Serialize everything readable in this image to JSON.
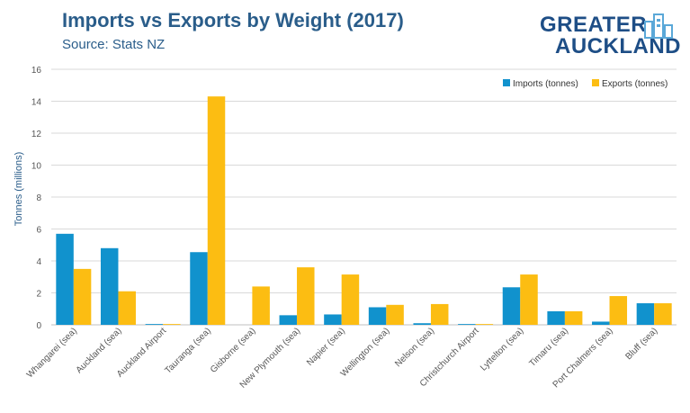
{
  "header": {
    "title": "Imports vs Exports by Weight (2017)",
    "subtitle": "Source: Stats NZ"
  },
  "logo": {
    "line1": "GREATER",
    "line2": "AUCKLAND"
  },
  "colors": {
    "imports": "#1192cd",
    "exports": "#fcbd12",
    "grid": "#d9d9d9",
    "title": "#2a5d8a",
    "logo": "#1e4e86"
  },
  "chart_data": {
    "type": "bar",
    "title": "Imports vs Exports by Weight (2017)",
    "subtitle": "Source: Stats NZ",
    "xlabel": "",
    "ylabel": "Tonnes (millions)",
    "ylim": [
      0,
      16
    ],
    "yticks": [
      0,
      2,
      4,
      6,
      8,
      10,
      12,
      14,
      16
    ],
    "grid": true,
    "legend_position": "top-right",
    "categories": [
      "Whangarei (sea)",
      "Auckland (sea)",
      "Auckland Airport",
      "Tauranga (sea)",
      "Gisborne (sea)",
      "New Plymouth (sea)",
      "Napier (sea)",
      "Wellington (sea)",
      "Nelson (sea)",
      "Christchurch Airport",
      "Lyttelton (sea)",
      "Timaru (sea)",
      "Port Chalmers (sea)",
      "Bluff (sea)"
    ],
    "series": [
      {
        "name": "Imports (tonnes)",
        "color": "#1192cd",
        "values": [
          5.7,
          4.8,
          0.05,
          4.55,
          0.0,
          0.6,
          0.65,
          1.1,
          0.1,
          0.05,
          2.35,
          0.85,
          0.2,
          1.35
        ]
      },
      {
        "name": "Exports (tonnes)",
        "color": "#fcbd12",
        "values": [
          3.5,
          2.1,
          0.05,
          14.3,
          2.4,
          3.6,
          3.15,
          1.25,
          1.3,
          0.05,
          3.15,
          0.85,
          1.8,
          1.35
        ]
      }
    ]
  }
}
